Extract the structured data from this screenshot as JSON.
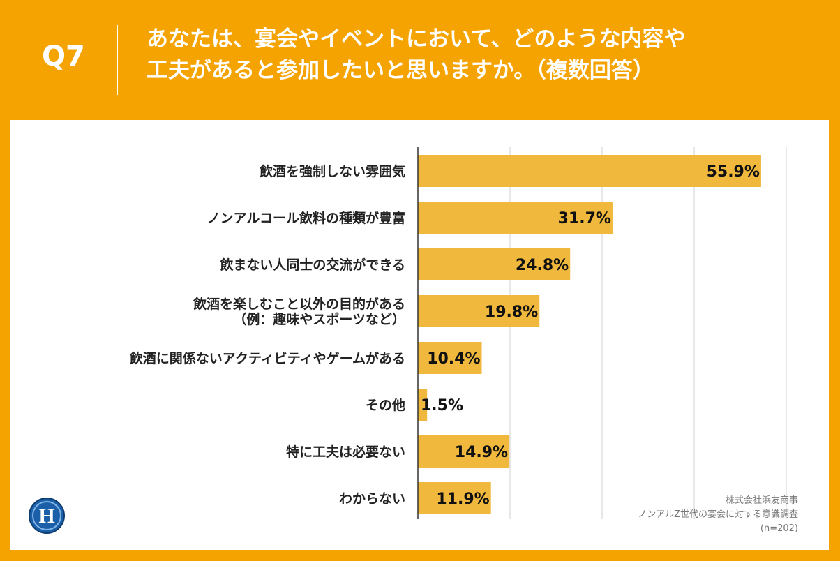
{
  "header": {
    "question_number": "Q7",
    "question_line1": "あなたは、宴会やイベントにおいて、どのような内容や",
    "question_line2": "工夫があると参加したいと思いますか。（複数回答）"
  },
  "source": {
    "company": "株式会社浜友商事",
    "survey": "ノンアルZ世代の宴会に対する意識調査",
    "sample": "(n=202)"
  },
  "logo": {
    "letter": "H"
  },
  "colors": {
    "background": "#f5a300",
    "bar": "#f0b93d",
    "grid": "#d0d0d0",
    "axis": "#333333"
  },
  "chart_data": {
    "type": "bar",
    "orientation": "horizontal",
    "categories": [
      [
        "飲酒を強制しない雰囲気"
      ],
      [
        "ノンアルコール飲料の種類が豊富"
      ],
      [
        "飲まない人同士の交流ができる"
      ],
      [
        "飲酒を楽しむこと以外の目的がある",
        "（例：趣味やスポーツなど）"
      ],
      [
        "飲酒に関係ないアクティビティやゲームがある"
      ],
      [
        "その他"
      ],
      [
        "特に工夫は必要ない"
      ],
      [
        "わからない"
      ]
    ],
    "values": [
      55.9,
      31.7,
      24.8,
      19.8,
      10.4,
      1.5,
      14.9,
      11.9
    ],
    "value_labels": [
      "55.9%",
      "31.7%",
      "24.8%",
      "19.8%",
      "10.4%",
      "1.5%",
      "14.9%",
      "11.9%"
    ],
    "xlim": [
      0,
      60
    ],
    "grid": true,
    "legend": "none"
  }
}
